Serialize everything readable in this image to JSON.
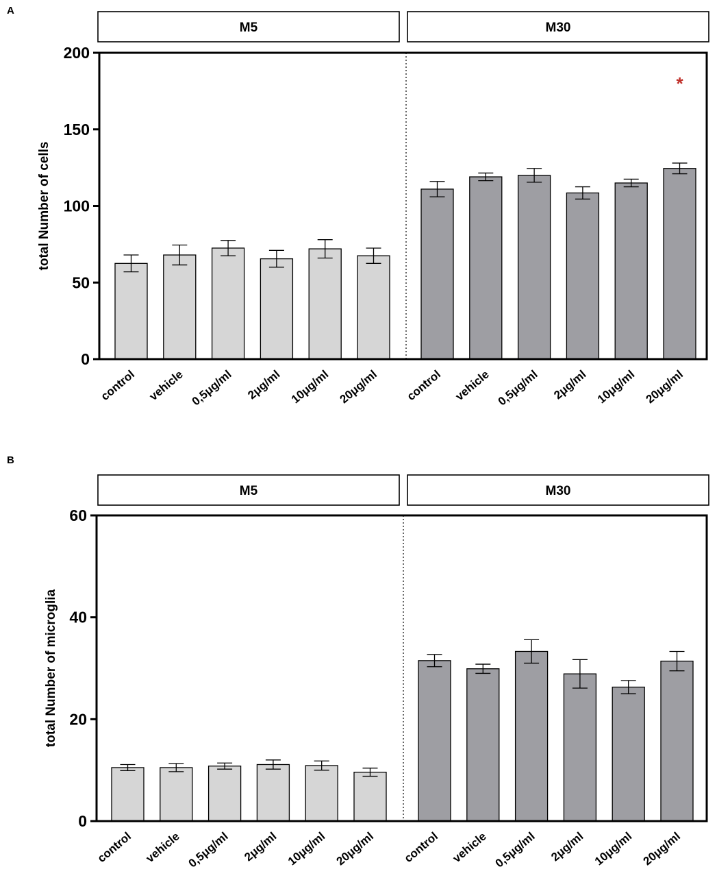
{
  "chart_data": [
    {
      "panel": "A",
      "type": "bar",
      "ylabel": "total Number of cells",
      "xlabel": "",
      "ylim": [
        0,
        200
      ],
      "yticks": [
        0,
        50,
        100,
        150,
        200
      ],
      "colors": {
        "M5": "#d6d6d6",
        "M30": "#9e9ea3",
        "significance": "#c0312b"
      },
      "groups": [
        {
          "name": "M5",
          "categories": [
            "control",
            "vehicle",
            "0,5μg/ml",
            "2μg/ml",
            "10μg/ml",
            "20μg/ml"
          ],
          "values": [
            62.5,
            68,
            72.5,
            65.5,
            72,
            67.5
          ],
          "errors": [
            5.5,
            6.5,
            5,
            5.5,
            6,
            5
          ]
        },
        {
          "name": "M30",
          "categories": [
            "control",
            "vehicle",
            "0,5μg/ml",
            "2μg/ml",
            "10μg/ml",
            "20μg/ml"
          ],
          "values": [
            111,
            119,
            120,
            108.5,
            115,
            124.5
          ],
          "errors": [
            5,
            2.5,
            4.5,
            4,
            2.5,
            3.5
          ]
        }
      ],
      "annotations": [
        {
          "group": "M30",
          "category_index": 5,
          "text": "*",
          "y": 182
        }
      ]
    },
    {
      "panel": "B",
      "type": "bar",
      "ylabel": "total Number of microglia",
      "xlabel": "",
      "ylim": [
        0,
        60
      ],
      "yticks": [
        0,
        20,
        40,
        60
      ],
      "colors": {
        "M5": "#d6d6d6",
        "M30": "#9e9ea3"
      },
      "groups": [
        {
          "name": "M5",
          "categories": [
            "control",
            "vehicle",
            "0,5μg/ml",
            "2μg/ml",
            "10μg/ml",
            "20μg/ml"
          ],
          "values": [
            10.5,
            10.5,
            10.8,
            11.1,
            10.9,
            9.6
          ],
          "errors": [
            0.6,
            0.8,
            0.6,
            0.9,
            0.9,
            0.8
          ]
        },
        {
          "name": "M30",
          "categories": [
            "control",
            "vehicle",
            "0,5μg/ml",
            "2μg/ml",
            "10μg/ml",
            "20μg/ml"
          ],
          "values": [
            31.5,
            29.9,
            33.3,
            28.9,
            26.3,
            31.4
          ],
          "errors": [
            1.2,
            0.9,
            2.3,
            2.8,
            1.3,
            1.9
          ]
        }
      ],
      "annotations": []
    }
  ]
}
